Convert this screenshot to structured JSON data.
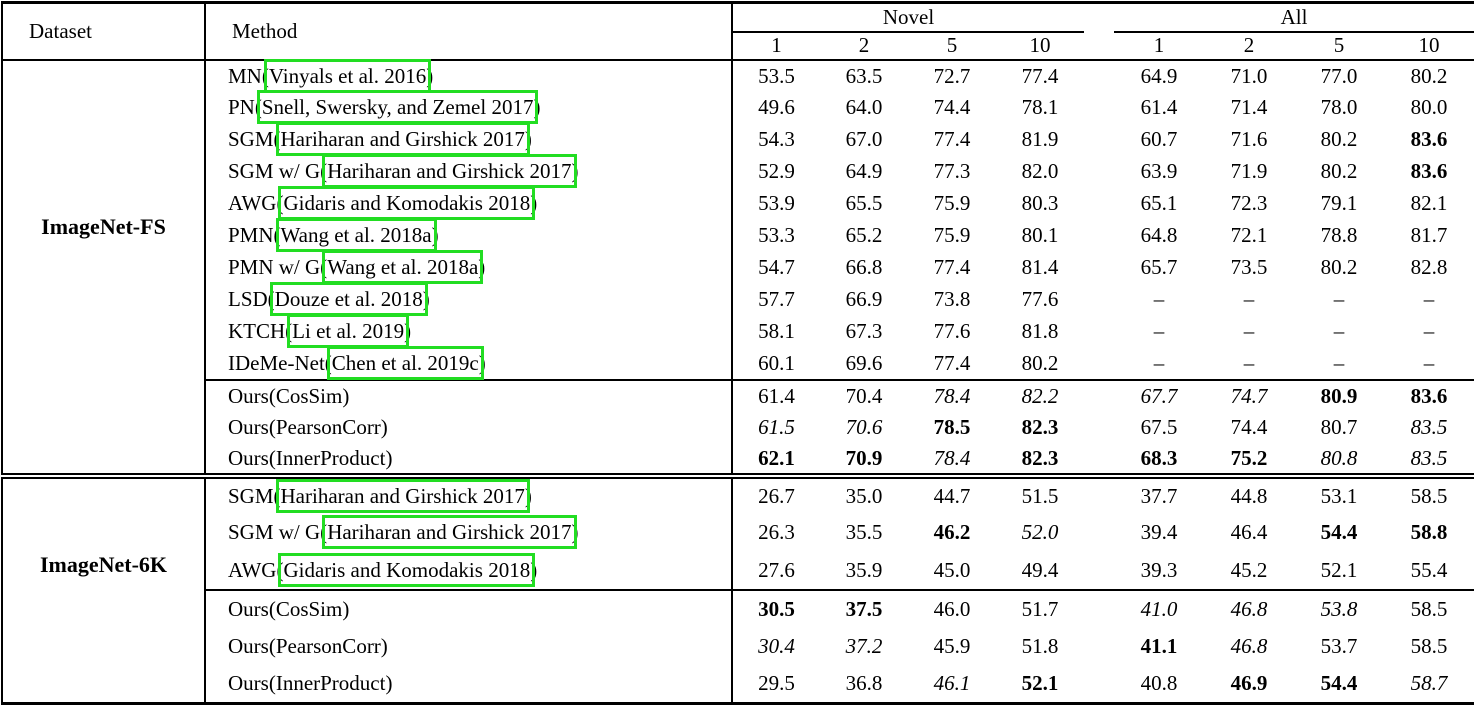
{
  "colors": {
    "citation_box_green": "#22dd22"
  },
  "table": {
    "header": {
      "dataset": "Dataset",
      "method": "Method",
      "groups": [
        {
          "label": "Novel",
          "cols": [
            "1",
            "2",
            "5",
            "10"
          ]
        },
        {
          "label": "All",
          "cols": [
            "1",
            "2",
            "5",
            "10"
          ]
        }
      ]
    },
    "sections": [
      {
        "dataset": "ImageNet-FS",
        "ours_start": 10,
        "rows": [
          {
            "method": {
              "prefix": "MN(",
              "cite": "Vinyals et al. 2016",
              "suffix": ")"
            },
            "values": [
              "53.5",
              "63.5",
              "72.7",
              "77.4",
              "64.9",
              "71.0",
              "77.0",
              "80.2"
            ],
            "styles": [
              "n",
              "n",
              "n",
              "n",
              "n",
              "n",
              "n",
              "n"
            ]
          },
          {
            "method": {
              "prefix": "PN(",
              "cite": "Snell, Swersky, and Zemel 2017",
              "suffix": ")"
            },
            "values": [
              "49.6",
              "64.0",
              "74.4",
              "78.1",
              "61.4",
              "71.4",
              "78.0",
              "80.0"
            ],
            "styles": [
              "n",
              "n",
              "n",
              "n",
              "n",
              "n",
              "n",
              "n"
            ]
          },
          {
            "method": {
              "prefix": "SGM(",
              "cite": "Hariharan and Girshick 2017",
              "suffix": ")"
            },
            "values": [
              "54.3",
              "67.0",
              "77.4",
              "81.9",
              "60.7",
              "71.6",
              "80.2",
              "83.6"
            ],
            "styles": [
              "n",
              "n",
              "n",
              "n",
              "n",
              "n",
              "n",
              "b"
            ]
          },
          {
            "method": {
              "prefix": "SGM w/ G(",
              "cite": "Hariharan and Girshick 2017",
              "suffix": ")"
            },
            "values": [
              "52.9",
              "64.9",
              "77.3",
              "82.0",
              "63.9",
              "71.9",
              "80.2",
              "83.6"
            ],
            "styles": [
              "n",
              "n",
              "n",
              "n",
              "n",
              "n",
              "n",
              "b"
            ]
          },
          {
            "method": {
              "prefix": "AWG(",
              "cite": "Gidaris and Komodakis 2018",
              "suffix": ")"
            },
            "values": [
              "53.9",
              "65.5",
              "75.9",
              "80.3",
              "65.1",
              "72.3",
              "79.1",
              "82.1"
            ],
            "styles": [
              "n",
              "n",
              "n",
              "n",
              "n",
              "n",
              "n",
              "n"
            ]
          },
          {
            "method": {
              "prefix": "PMN(",
              "cite": "Wang et al. 2018a",
              "suffix": ")"
            },
            "values": [
              "53.3",
              "65.2",
              "75.9",
              "80.1",
              "64.8",
              "72.1",
              "78.8",
              "81.7"
            ],
            "styles": [
              "n",
              "n",
              "n",
              "n",
              "n",
              "n",
              "n",
              "n"
            ]
          },
          {
            "method": {
              "prefix": "PMN w/ G(",
              "cite": "Wang et al. 2018a",
              "suffix": ")"
            },
            "values": [
              "54.7",
              "66.8",
              "77.4",
              "81.4",
              "65.7",
              "73.5",
              "80.2",
              "82.8"
            ],
            "styles": [
              "n",
              "n",
              "n",
              "n",
              "n",
              "n",
              "n",
              "n"
            ]
          },
          {
            "method": {
              "prefix": "LSD(",
              "cite": "Douze et al. 2018",
              "suffix": ")"
            },
            "values": [
              "57.7",
              "66.9",
              "73.8",
              "77.6",
              "–",
              "–",
              "–",
              "–"
            ],
            "styles": [
              "n",
              "n",
              "n",
              "n",
              "n",
              "n",
              "n",
              "n"
            ]
          },
          {
            "method": {
              "prefix": "KTCH(",
              "cite": "Li et al. 2019",
              "suffix": ")"
            },
            "values": [
              "58.1",
              "67.3",
              "77.6",
              "81.8",
              "–",
              "–",
              "–",
              "–"
            ],
            "styles": [
              "n",
              "n",
              "n",
              "n",
              "n",
              "n",
              "n",
              "n"
            ]
          },
          {
            "method": {
              "prefix": "IDeMe-Net(",
              "cite": "Chen et al. 2019c",
              "suffix": ")"
            },
            "values": [
              "60.1",
              "69.6",
              "77.4",
              "80.2",
              "–",
              "–",
              "–",
              "–"
            ],
            "styles": [
              "n",
              "n",
              "n",
              "n",
              "n",
              "n",
              "n",
              "n"
            ]
          },
          {
            "method": {
              "prefix": "Ours(CosSim)"
            },
            "values": [
              "61.4",
              "70.4",
              "78.4",
              "82.2",
              "67.7",
              "74.7",
              "80.9",
              "83.6"
            ],
            "styles": [
              "n",
              "n",
              "i",
              "i",
              "i",
              "i",
              "b",
              "b"
            ]
          },
          {
            "method": {
              "prefix": "Ours(PearsonCorr)"
            },
            "values": [
              "61.5",
              "70.6",
              "78.5",
              "82.3",
              "67.5",
              "74.4",
              "80.7",
              "83.5"
            ],
            "styles": [
              "i",
              "i",
              "b",
              "b",
              "n",
              "n",
              "n",
              "i"
            ]
          },
          {
            "method": {
              "prefix": "Ours(InnerProduct)"
            },
            "values": [
              "62.1",
              "70.9",
              "78.4",
              "82.3",
              "68.3",
              "75.2",
              "80.8",
              "83.5"
            ],
            "styles": [
              "b",
              "b",
              "i",
              "b",
              "b",
              "b",
              "i",
              "i"
            ]
          }
        ]
      },
      {
        "dataset": "ImageNet-6K",
        "ours_start": 3,
        "rows": [
          {
            "method": {
              "prefix": "SGM(",
              "cite": "Hariharan and Girshick 2017",
              "suffix": ")"
            },
            "values": [
              "26.7",
              "35.0",
              "44.7",
              "51.5",
              "37.7",
              "44.8",
              "53.1",
              "58.5"
            ],
            "styles": [
              "n",
              "n",
              "n",
              "n",
              "n",
              "n",
              "n",
              "n"
            ]
          },
          {
            "method": {
              "prefix": "SGM w/ G(",
              "cite": "Hariharan and Girshick 2017",
              "suffix": ")"
            },
            "values": [
              "26.3",
              "35.5",
              "46.2",
              "52.0",
              "39.4",
              "46.4",
              "54.4",
              "58.8"
            ],
            "styles": [
              "n",
              "n",
              "b",
              "i",
              "n",
              "n",
              "b",
              "b"
            ]
          },
          {
            "method": {
              "prefix": "AWG(",
              "cite": "Gidaris and Komodakis 2018",
              "suffix": ")"
            },
            "values": [
              "27.6",
              "35.9",
              "45.0",
              "49.4",
              "39.3",
              "45.2",
              "52.1",
              "55.4"
            ],
            "styles": [
              "n",
              "n",
              "n",
              "n",
              "n",
              "n",
              "n",
              "n"
            ]
          },
          {
            "method": {
              "prefix": "Ours(CosSim)"
            },
            "values": [
              "30.5",
              "37.5",
              "46.0",
              "51.7",
              "41.0",
              "46.8",
              "53.8",
              "58.5"
            ],
            "styles": [
              "b",
              "b",
              "n",
              "n",
              "i",
              "i",
              "i",
              "n"
            ]
          },
          {
            "method": {
              "prefix": "Ours(PearsonCorr)"
            },
            "values": [
              "30.4",
              "37.2",
              "45.9",
              "51.8",
              "41.1",
              "46.8",
              "53.7",
              "58.5"
            ],
            "styles": [
              "i",
              "i",
              "n",
              "n",
              "b",
              "i",
              "n",
              "n"
            ]
          },
          {
            "method": {
              "prefix": "Ours(InnerProduct)"
            },
            "values": [
              "29.5",
              "36.8",
              "46.1",
              "52.1",
              "40.8",
              "46.9",
              "54.4",
              "58.7"
            ],
            "styles": [
              "n",
              "n",
              "i",
              "b",
              "n",
              "b",
              "b",
              "i"
            ]
          }
        ]
      }
    ]
  }
}
